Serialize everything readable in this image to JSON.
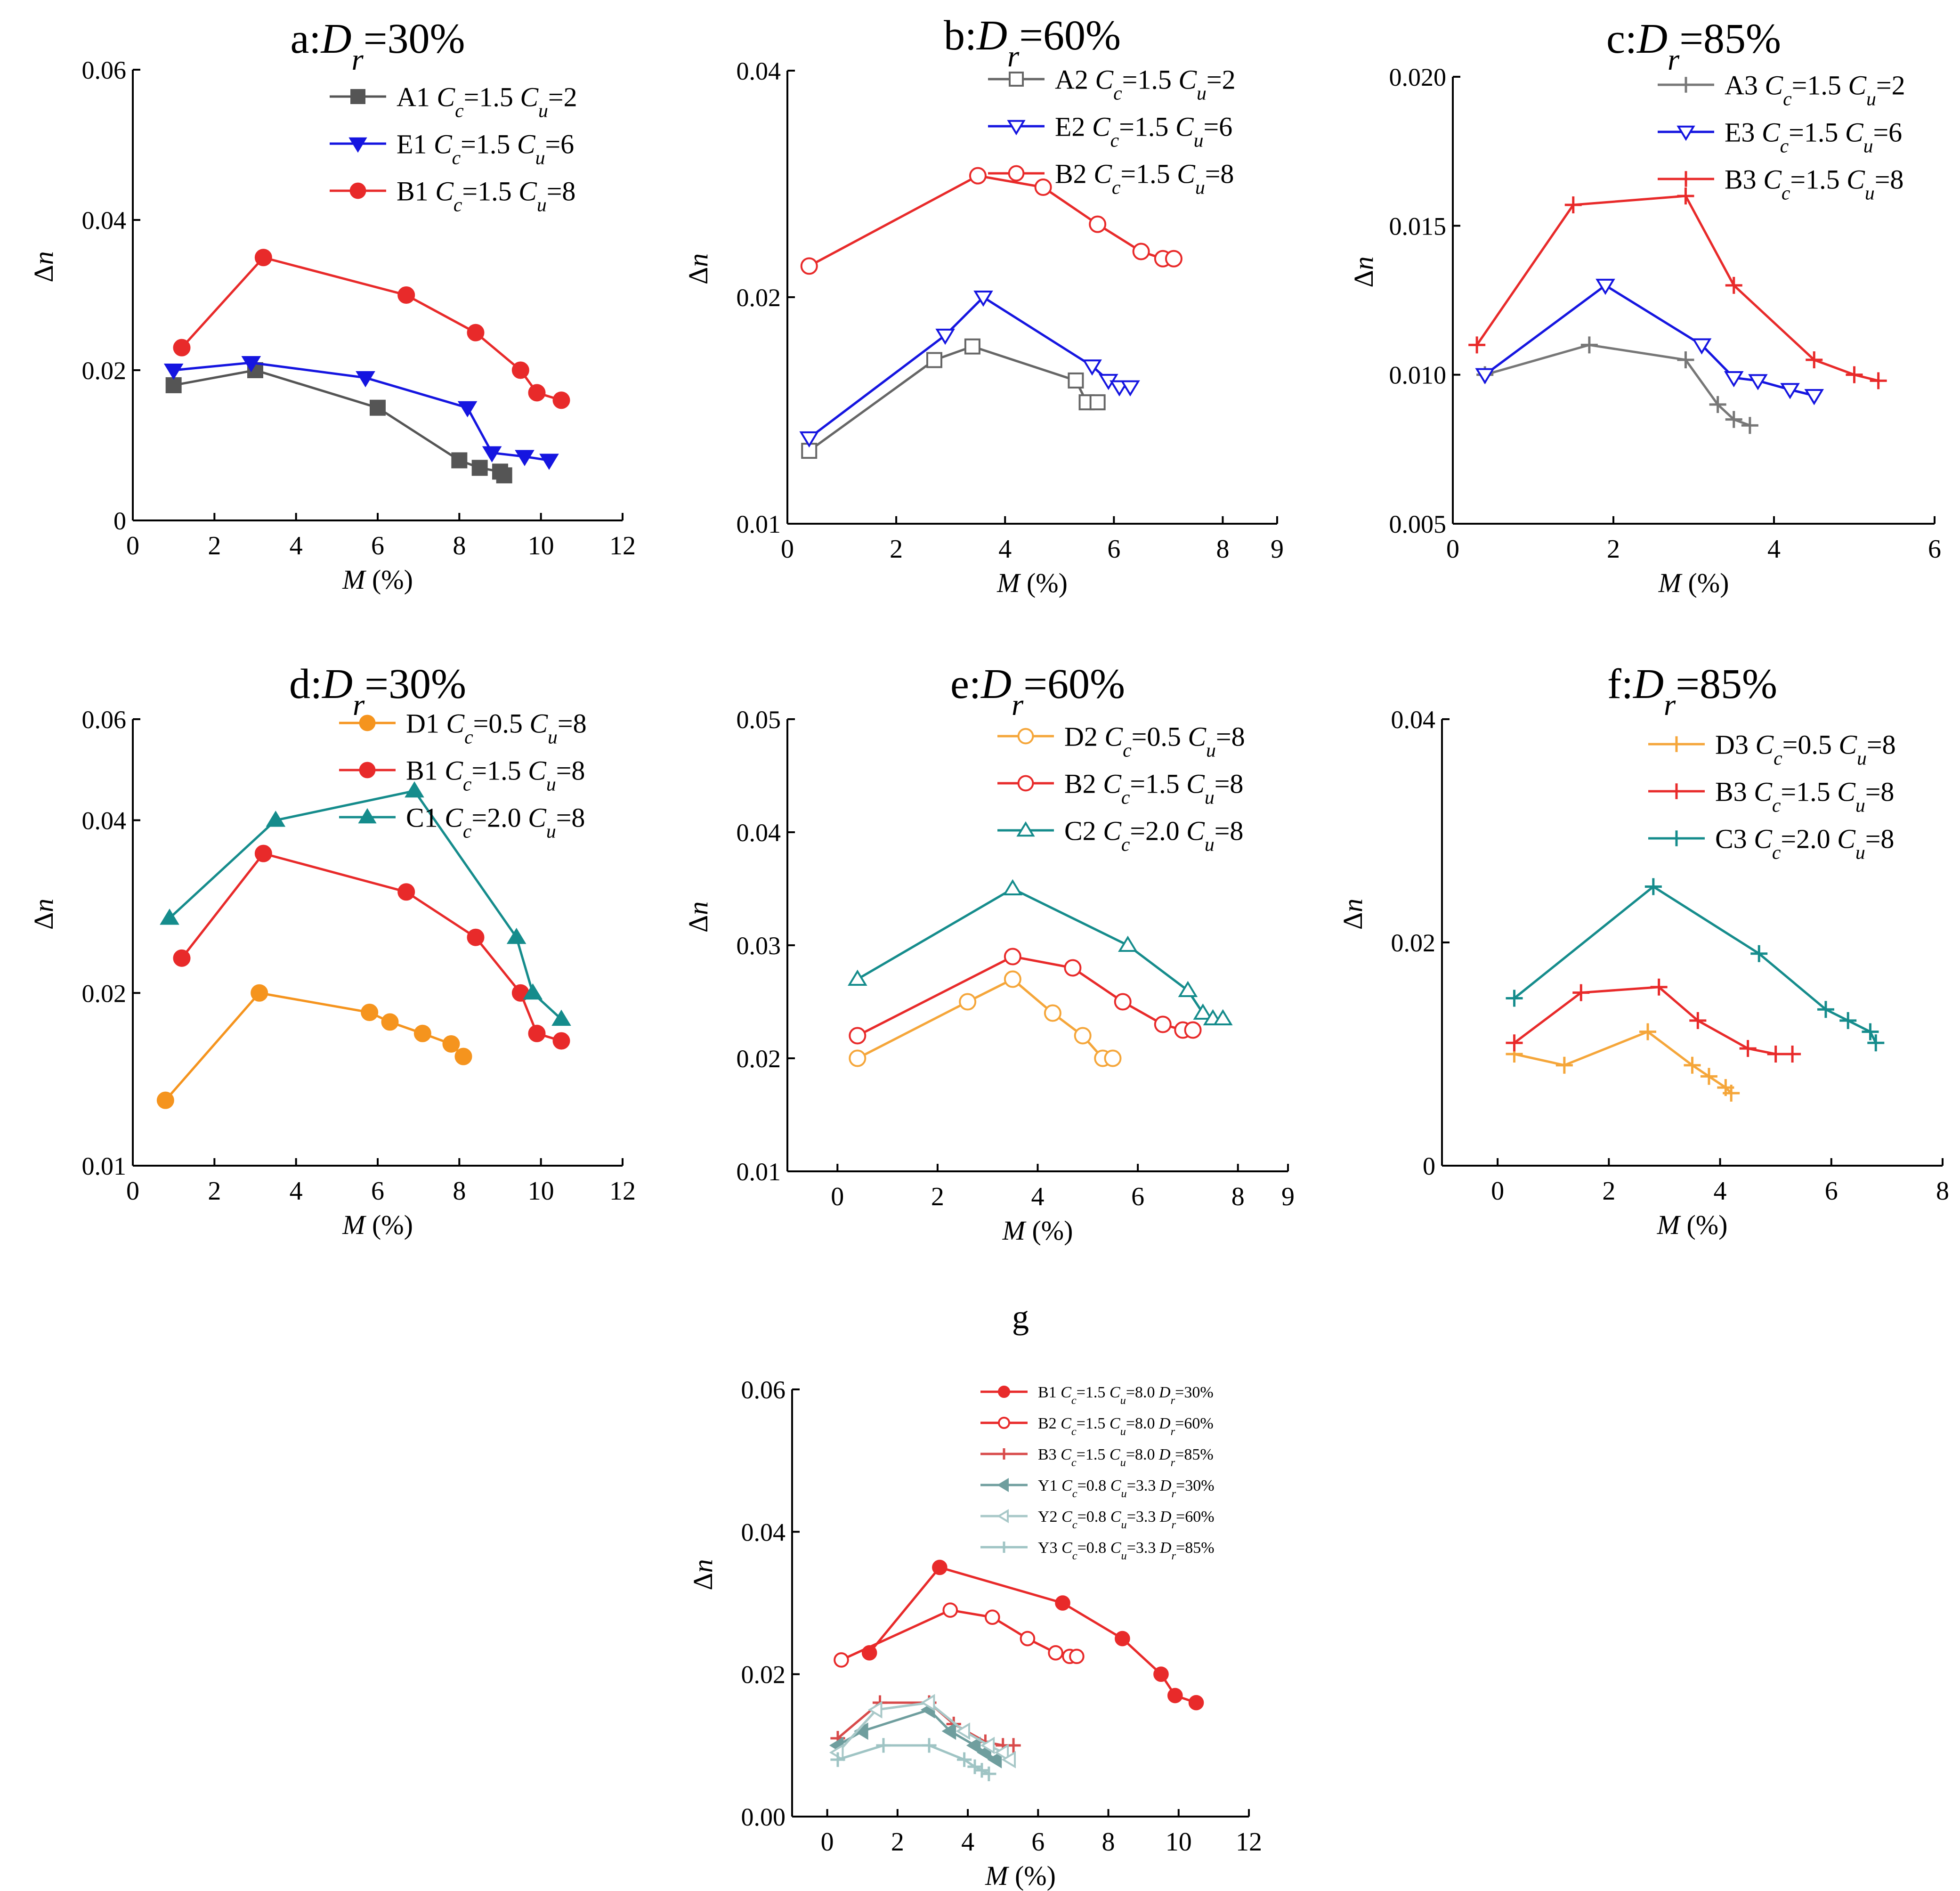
{
  "chart_data": [
    {
      "id": "a",
      "type": "line",
      "title": "a:Dr=30%",
      "title_prefix": "a:",
      "title_suffix": "=30%",
      "xlabel": "M (%)",
      "ylabel": "Δn",
      "scale": "linear",
      "xlim": [
        0,
        12
      ],
      "ylim": [
        0,
        0.06
      ],
      "xticks": [
        0,
        2,
        4,
        6,
        8,
        10,
        12
      ],
      "yticks": [
        0,
        0.02,
        0.04,
        0.06
      ],
      "ytick_labels": [
        "0",
        "0.02",
        "0.04",
        "0.06"
      ],
      "series": [
        {
          "label": "A1",
          "cc": "1.5",
          "cu": "2",
          "color": "#555555",
          "marker": "square",
          "fill": true,
          "x": [
            1.0,
            3.0,
            6.0,
            8.0,
            8.5,
            9.0,
            9.1
          ],
          "y": [
            0.018,
            0.02,
            0.015,
            0.008,
            0.007,
            0.0065,
            0.006
          ]
        },
        {
          "label": "E1",
          "cc": "1.5",
          "cu": "6",
          "color": "#1515e0",
          "marker": "tri-down",
          "fill": true,
          "x": [
            1.0,
            2.9,
            5.7,
            8.2,
            8.8,
            9.6,
            10.2
          ],
          "y": [
            0.02,
            0.021,
            0.019,
            0.015,
            0.009,
            0.0085,
            0.008
          ]
        },
        {
          "label": "B1",
          "cc": "1.5",
          "cu": "8",
          "color": "#e82a2a",
          "marker": "circle",
          "fill": true,
          "x": [
            1.2,
            3.2,
            6.7,
            8.4,
            9.5,
            9.9,
            10.5
          ],
          "y": [
            0.023,
            0.035,
            0.03,
            0.025,
            0.02,
            0.017,
            0.016
          ]
        }
      ]
    },
    {
      "id": "b",
      "type": "line",
      "title": "b:Dr=60%",
      "title_prefix": "b:",
      "title_suffix": "=60%",
      "xlabel": "M (%)",
      "ylabel": "Δn",
      "scale": "log",
      "xlim": [
        0,
        9
      ],
      "ylim": [
        0.01,
        0.04
      ],
      "xticks": [
        0,
        2,
        4,
        6,
        8,
        9
      ],
      "xtick_labels": [
        "0",
        "2",
        "4",
        "6",
        "8",
        "9"
      ],
      "yticks": [
        0.01,
        0.02,
        0.04
      ],
      "ytick_labels": [
        "0.01",
        "0.02",
        "0.04"
      ],
      "series": [
        {
          "label": "A2",
          "cc": "1.5",
          "cu": "2",
          "color": "#666666",
          "marker": "square",
          "fill": false,
          "x": [
            0.4,
            2.7,
            3.4,
            5.3,
            5.5,
            5.7
          ],
          "y": [
            0.0125,
            0.0165,
            0.0172,
            0.0155,
            0.0145,
            0.0145
          ]
        },
        {
          "label": "E2",
          "cc": "1.5",
          "cu": "6",
          "color": "#1515e0",
          "marker": "tri-down",
          "fill": false,
          "x": [
            0.4,
            2.9,
            3.6,
            5.6,
            5.9,
            6.1,
            6.3
          ],
          "y": [
            0.013,
            0.0178,
            0.02,
            0.0162,
            0.0155,
            0.0152,
            0.0152
          ]
        },
        {
          "label": "B2",
          "cc": "1.5",
          "cu": "8",
          "color": "#e82a2a",
          "marker": "circle",
          "fill": false,
          "x": [
            0.4,
            3.5,
            4.7,
            5.7,
            6.5,
            6.9,
            7.1
          ],
          "y": [
            0.022,
            0.029,
            0.028,
            0.025,
            0.023,
            0.0225,
            0.0225
          ]
        }
      ]
    },
    {
      "id": "c",
      "type": "line",
      "title": "c:Dr=85%",
      "title_prefix": "c:",
      "title_suffix": "=85%",
      "xlabel": "M (%)",
      "ylabel": "Δn",
      "scale": "linear",
      "xlim": [
        0,
        6
      ],
      "ylim": [
        0.005,
        0.02
      ],
      "xticks": [
        0,
        2,
        4,
        6
      ],
      "yticks": [
        0.005,
        0.01,
        0.015,
        0.02
      ],
      "ytick_labels": [
        "0.005",
        "0.010",
        "0.015",
        "0.020"
      ],
      "series": [
        {
          "label": "A3",
          "cc": "1.5",
          "cu": "2",
          "color": "#777777",
          "marker": "plus",
          "fill": false,
          "x": [
            0.4,
            1.7,
            2.9,
            3.3,
            3.5,
            3.7
          ],
          "y": [
            0.01,
            0.011,
            0.0105,
            0.009,
            0.0085,
            0.0083
          ]
        },
        {
          "label": "E3",
          "cc": "1.5",
          "cu": "6",
          "color": "#1515e0",
          "marker": "tri-down",
          "fill": false,
          "x": [
            0.4,
            1.9,
            3.1,
            3.5,
            3.8,
            4.2,
            4.5
          ],
          "y": [
            0.01,
            0.013,
            0.011,
            0.0099,
            0.0098,
            0.0095,
            0.0093
          ]
        },
        {
          "label": "B3",
          "cc": "1.5",
          "cu": "8",
          "color": "#e82a2a",
          "marker": "plus",
          "fill": false,
          "x": [
            0.3,
            1.5,
            2.9,
            3.5,
            4.5,
            5.0,
            5.3
          ],
          "y": [
            0.011,
            0.0157,
            0.016,
            0.013,
            0.0105,
            0.01,
            0.0098
          ]
        }
      ]
    },
    {
      "id": "d",
      "type": "line",
      "title": "d:Dr=30%",
      "title_prefix": "d:",
      "title_suffix": "=30%",
      "xlabel": "M (%)",
      "ylabel": "Δn",
      "scale": "log",
      "xlim": [
        0,
        12
      ],
      "ylim": [
        0.01,
        0.06
      ],
      "xticks": [
        0,
        2,
        4,
        6,
        8,
        10,
        12
      ],
      "yticks": [
        0.01,
        0.02,
        0.04,
        0.06
      ],
      "ytick_labels": [
        "0.01",
        "0.02",
        "0.04",
        "0.06"
      ],
      "series": [
        {
          "label": "D1",
          "cc": "0.5",
          "cu": "8",
          "color": "#f5941e",
          "marker": "circle",
          "fill": true,
          "x": [
            0.8,
            3.1,
            5.8,
            6.3,
            7.1,
            7.8,
            8.1
          ],
          "y": [
            0.013,
            0.02,
            0.0185,
            0.0178,
            0.017,
            0.0163,
            0.0155
          ]
        },
        {
          "label": "B1",
          "cc": "1.5",
          "cu": "8",
          "color": "#e82a2a",
          "marker": "circle",
          "fill": true,
          "x": [
            1.2,
            3.2,
            6.7,
            8.4,
            9.5,
            9.9,
            10.5
          ],
          "y": [
            0.023,
            0.035,
            0.03,
            0.025,
            0.02,
            0.017,
            0.0165
          ]
        },
        {
          "label": "C1",
          "cc": "2.0",
          "cu": "8",
          "color": "#158c8c",
          "marker": "tri-up",
          "fill": true,
          "x": [
            0.9,
            3.5,
            6.9,
            9.4,
            9.8,
            10.5
          ],
          "y": [
            0.027,
            0.04,
            0.045,
            0.025,
            0.02,
            0.018
          ]
        }
      ]
    },
    {
      "id": "e",
      "type": "line",
      "title": "e:Dr=60%",
      "title_prefix": "e:",
      "title_suffix": "=60%",
      "xlabel": "M (%)",
      "ylabel": "Δn",
      "scale": "linear",
      "xlim": [
        -1,
        9
      ],
      "ylim": [
        0.01,
        0.05
      ],
      "xticks": [
        0,
        2,
        4,
        6,
        8,
        9
      ],
      "yticks": [
        0.01,
        0.02,
        0.03,
        0.04,
        0.05
      ],
      "ytick_labels": [
        "0.01",
        "0.02",
        "0.03",
        "0.04",
        "0.05"
      ],
      "series": [
        {
          "label": "D2",
          "cc": "0.5",
          "cu": "8",
          "color": "#f5a63a",
          "marker": "circle",
          "fill": false,
          "x": [
            0.4,
            2.6,
            3.5,
            4.3,
            4.9,
            5.3,
            5.5
          ],
          "y": [
            0.02,
            0.025,
            0.027,
            0.024,
            0.022,
            0.02,
            0.02
          ]
        },
        {
          "label": "B2",
          "cc": "1.5",
          "cu": "8",
          "color": "#e82a2a",
          "marker": "circle",
          "fill": false,
          "x": [
            0.4,
            3.5,
            4.7,
            5.7,
            6.5,
            6.9,
            7.1
          ],
          "y": [
            0.022,
            0.029,
            0.028,
            0.025,
            0.023,
            0.0225,
            0.0225
          ]
        },
        {
          "label": "C2",
          "cc": "2.0",
          "cu": "8",
          "color": "#158c8c",
          "marker": "tri-up",
          "fill": false,
          "x": [
            0.4,
            3.5,
            5.8,
            7.0,
            7.3,
            7.5,
            7.7
          ],
          "y": [
            0.027,
            0.035,
            0.03,
            0.026,
            0.024,
            0.0235,
            0.0235
          ]
        }
      ]
    },
    {
      "id": "f",
      "type": "line",
      "title": "f:Dr=85%",
      "title_prefix": "f:",
      "title_suffix": "=85%",
      "xlabel": "M (%)",
      "ylabel": "Δn",
      "scale": "linear",
      "xlim": [
        -1,
        8
      ],
      "ylim": [
        0,
        0.04
      ],
      "xticks": [
        0,
        2,
        4,
        6,
        8
      ],
      "yticks": [
        0,
        0.02,
        0.04
      ],
      "ytick_labels": [
        "0",
        "0.02",
        "0.04"
      ],
      "series": [
        {
          "label": "D3",
          "cc": "0.5",
          "cu": "8",
          "color": "#f5a63a",
          "marker": "plus",
          "fill": false,
          "x": [
            0.3,
            1.2,
            2.7,
            3.5,
            3.8,
            4.1,
            4.2
          ],
          "y": [
            0.01,
            0.009,
            0.012,
            0.009,
            0.008,
            0.007,
            0.0065
          ]
        },
        {
          "label": "B3",
          "cc": "1.5",
          "cu": "8",
          "color": "#e82a2a",
          "marker": "plus",
          "fill": false,
          "x": [
            0.3,
            1.5,
            2.9,
            3.6,
            4.5,
            5.0,
            5.3
          ],
          "y": [
            0.011,
            0.0155,
            0.016,
            0.013,
            0.0105,
            0.01,
            0.01
          ]
        },
        {
          "label": "C3",
          "cc": "2.0",
          "cu": "8",
          "color": "#158c8c",
          "marker": "plus",
          "fill": false,
          "x": [
            0.3,
            2.8,
            4.7,
            5.9,
            6.3,
            6.7,
            6.8
          ],
          "y": [
            0.015,
            0.025,
            0.019,
            0.014,
            0.013,
            0.012,
            0.011
          ]
        }
      ]
    },
    {
      "id": "g",
      "type": "line",
      "title": "g",
      "title_prefix": "g",
      "title_suffix": "",
      "xlabel": "M (%)",
      "ylabel": "Δn",
      "scale": "linear",
      "xlim": [
        -1,
        12
      ],
      "ylim": [
        0,
        0.06
      ],
      "xticks": [
        0,
        2,
        4,
        6,
        8,
        10,
        12
      ],
      "yticks": [
        0,
        0.02,
        0.04,
        0.06
      ],
      "ytick_labels": [
        "0.00",
        "0.02",
        "0.04",
        "0.06"
      ],
      "series": [
        {
          "label": "B1",
          "cc": "1.5",
          "cu": "8.0",
          "dr": "30%",
          "color": "#e82a2a",
          "marker": "circle",
          "fill": true,
          "x": [
            1.2,
            3.2,
            6.7,
            8.4,
            9.5,
            9.9,
            10.5
          ],
          "y": [
            0.023,
            0.035,
            0.03,
            0.025,
            0.02,
            0.017,
            0.016
          ]
        },
        {
          "label": "B2",
          "cc": "1.5",
          "cu": "8.0",
          "dr": "60%",
          "color": "#e82a2a",
          "marker": "circle",
          "fill": false,
          "x": [
            0.4,
            3.5,
            4.7,
            5.7,
            6.5,
            6.9,
            7.1
          ],
          "y": [
            0.022,
            0.029,
            0.028,
            0.025,
            0.023,
            0.0225,
            0.0225
          ]
        },
        {
          "label": "B3",
          "cc": "1.5",
          "cu": "8.0",
          "dr": "85%",
          "color": "#d84a4a",
          "marker": "plus",
          "fill": false,
          "x": [
            0.3,
            1.5,
            2.9,
            3.6,
            4.5,
            5.0,
            5.3
          ],
          "y": [
            0.011,
            0.016,
            0.016,
            0.013,
            0.0105,
            0.01,
            0.01
          ]
        },
        {
          "label": "Y1",
          "cc": "0.8",
          "cu": "3.3",
          "dr": "30%",
          "color": "#6f9e9e",
          "marker": "tri-left",
          "fill": true,
          "x": [
            0.3,
            1.0,
            2.9,
            3.5,
            4.2,
            4.5,
            4.8
          ],
          "y": [
            0.01,
            0.012,
            0.015,
            0.012,
            0.01,
            0.009,
            0.008
          ]
        },
        {
          "label": "Y2",
          "cc": "0.8",
          "cu": "3.3",
          "dr": "60%",
          "color": "#a8c8c8",
          "marker": "tri-left",
          "fill": false,
          "x": [
            0.3,
            1.4,
            2.9,
            3.9,
            4.6,
            5.0,
            5.2
          ],
          "y": [
            0.009,
            0.015,
            0.016,
            0.012,
            0.01,
            0.009,
            0.008
          ]
        },
        {
          "label": "Y3",
          "cc": "0.8",
          "cu": "3.3",
          "dr": "85%",
          "color": "#9fc4c4",
          "marker": "plus",
          "fill": false,
          "x": [
            0.3,
            1.6,
            2.9,
            3.9,
            4.2,
            4.4,
            4.6
          ],
          "y": [
            0.008,
            0.01,
            0.01,
            0.008,
            0.007,
            0.0065,
            0.006
          ]
        }
      ]
    }
  ]
}
